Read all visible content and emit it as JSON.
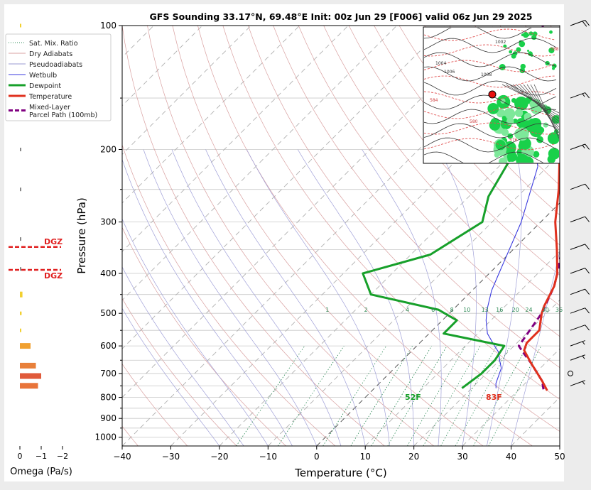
{
  "chart_data": {
    "type": "line",
    "title": "GFS Sounding 33.17°N, 69.48°E Init: 00z Jun 29 [F006] valid 06z Jun 29 2025",
    "xlabel": "Temperature (°C)",
    "ylabel": "Pressure (hPa)",
    "xlim": [
      -40,
      50
    ],
    "ylim": [
      1050,
      100
    ],
    "x_scale": "skew-T (45° skew)",
    "y_scale": "log",
    "x_ticks": [
      "−40",
      "−30",
      "−20",
      "−10",
      "0",
      "10",
      "20",
      "30",
      "40",
      "50"
    ],
    "y_ticks": [
      "100",
      "200",
      "300",
      "400",
      "500",
      "600",
      "700",
      "800",
      "900",
      "1000"
    ],
    "legend": {
      "position": "left-top",
      "entries": [
        {
          "label": "Sat. Mix. Ratio",
          "color": "#2e8b57",
          "style": "dotted"
        },
        {
          "label": "Dry Adiabats",
          "color": "#d9a0a0",
          "style": "solid"
        },
        {
          "label": "Pseudoadiabats",
          "color": "#9a9ad0",
          "style": "solid"
        },
        {
          "label": "Wetbulb",
          "color": "#3a3adf",
          "style": "solid"
        },
        {
          "label": "Dewpoint",
          "color": "#17a02a",
          "style": "thick"
        },
        {
          "label": "Temperature",
          "color": "#e0301e",
          "style": "thick"
        },
        {
          "label": "Mixed-Layer\nParcel Path (100mb)",
          "color": "#800080",
          "style": "dashed"
        }
      ]
    },
    "series": [
      {
        "name": "Temperature",
        "color": "#e0301e",
        "points": [
          [
            36,
            770
          ],
          [
            33,
            730
          ],
          [
            27,
            660
          ],
          [
            23,
            615
          ],
          [
            22,
            590
          ],
          [
            22,
            550
          ],
          [
            19,
            500
          ],
          [
            18,
            480
          ],
          [
            16,
            430
          ],
          [
            14,
            400
          ],
          [
            9,
            350
          ],
          [
            3,
            300
          ],
          [
            -3,
            250
          ],
          [
            -11,
            200
          ],
          [
            -17,
            160
          ],
          [
            -22,
            135
          ],
          [
            -25,
            100
          ]
        ]
      },
      {
        "name": "Dewpoint",
        "color": "#17a02a",
        "points": [
          [
            18,
            760
          ],
          [
            19,
            700
          ],
          [
            19,
            650
          ],
          [
            18,
            600
          ],
          [
            3,
            560
          ],
          [
            3,
            520
          ],
          [
            -3,
            490
          ],
          [
            -20,
            450
          ],
          [
            -26,
            400
          ],
          [
            -16,
            360
          ],
          [
            -12,
            300
          ],
          [
            -16,
            260
          ],
          [
            -20,
            200
          ],
          [
            -20,
            160
          ],
          [
            -21,
            100
          ]
        ]
      },
      {
        "name": "Wetbulb",
        "color": "#3a3adf",
        "points": [
          [
            25,
            760
          ],
          [
            24,
            740
          ],
          [
            22,
            680
          ],
          [
            20,
            650
          ],
          [
            18,
            620
          ],
          [
            16,
            600
          ],
          [
            12,
            560
          ],
          [
            9,
            520
          ],
          [
            7,
            490
          ],
          [
            4,
            440
          ],
          [
            2,
            400
          ],
          [
            -4,
            300
          ],
          [
            -12,
            220
          ],
          [
            -16,
            200
          ]
        ]
      },
      {
        "name": "Mixed-Layer Parcel Path (100mb)",
        "color": "#800080",
        "points": [
          [
            35,
            765
          ],
          [
            33,
            730
          ],
          [
            27,
            660
          ],
          [
            23,
            620
          ],
          [
            21,
            600
          ],
          [
            19,
            500
          ],
          [
            16,
            430
          ],
          [
            14,
            400
          ],
          [
            10,
            350
          ],
          [
            5,
            300
          ],
          [
            -3,
            240
          ],
          [
            -12,
            190
          ],
          [
            -22,
            150
          ],
          [
            -33,
            120
          ],
          [
            -40,
            100
          ]
        ]
      }
    ],
    "surface_labels": {
      "temperature": "83F",
      "dewpoint": "52F"
    },
    "mixing_ratio_labels": [
      "1",
      "2",
      "4",
      "6",
      "8",
      "10",
      "13",
      "16",
      "20",
      "24",
      "30",
      "36"
    ],
    "mixing_ratio_values": [
      1,
      2,
      4,
      6,
      8,
      10,
      13,
      16,
      20,
      24,
      30,
      36
    ],
    "omega": {
      "label": "Omega (Pa/s)",
      "xlim": [
        0.3,
        -2
      ],
      "ticks": [
        "0",
        "−1",
        "−2"
      ],
      "bars": [
        {
          "p": 750,
          "value": -0.85,
          "color": "#e8743a"
        },
        {
          "p": 710,
          "value": -1.0,
          "color": "#e05a3a"
        },
        {
          "p": 670,
          "value": -0.75,
          "color": "#e8803a"
        },
        {
          "p": 600,
          "value": -0.5,
          "color": "#f0a030"
        },
        {
          "p": 550,
          "value": -0.05,
          "color": "#f2d030"
        },
        {
          "p": 500,
          "value": -0.08,
          "color": "#f2d030"
        },
        {
          "p": 450,
          "value": -0.12,
          "color": "#f2d030"
        },
        {
          "p": 390,
          "value": -0.02,
          "color": "#888888"
        },
        {
          "p": 330,
          "value": -0.02,
          "color": "#888888"
        },
        {
          "p": 250,
          "value": -0.03,
          "color": "#888888"
        },
        {
          "p": 200,
          "value": -0.03,
          "color": "#888888"
        },
        {
          "p": 100,
          "value": -0.02,
          "color": "#f2d030"
        }
      ],
      "dgz_label": "DGZ",
      "dgz_pressures": [
        345,
        392
      ],
      "dgz_color": "#e02020"
    },
    "wind_barbs": [
      {
        "p": 100,
        "dir": 250,
        "kt": 20
      },
      {
        "p": 150,
        "dir": 250,
        "kt": 15
      },
      {
        "p": 200,
        "dir": 250,
        "kt": 15
      },
      {
        "p": 250,
        "dir": 250,
        "kt": 10
      },
      {
        "p": 300,
        "dir": 250,
        "kt": 10
      },
      {
        "p": 350,
        "dir": 250,
        "kt": 10
      },
      {
        "p": 400,
        "dir": 250,
        "kt": 10
      },
      {
        "p": 450,
        "dir": 250,
        "kt": 10
      },
      {
        "p": 500,
        "dir": 250,
        "kt": 10
      },
      {
        "p": 550,
        "dir": 250,
        "kt": 10
      },
      {
        "p": 600,
        "dir": 250,
        "kt": 5
      },
      {
        "p": 650,
        "dir": 250,
        "kt": 5
      },
      {
        "p": 700,
        "dir": 0,
        "kt": 0
      },
      {
        "p": 750,
        "dir": 250,
        "kt": 5
      }
    ]
  },
  "inset_map": {
    "contour_labels": [
      "1002",
      "1004",
      "1006",
      "1008",
      "588",
      "584",
      "580",
      "576"
    ],
    "location_marker_color": "#e81010"
  }
}
